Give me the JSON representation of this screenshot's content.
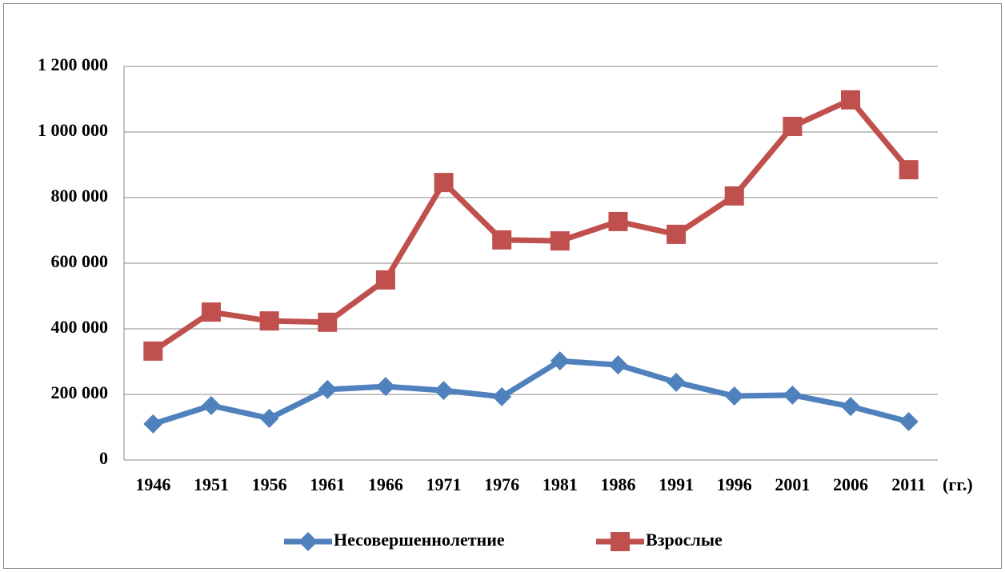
{
  "chart_data": {
    "type": "line",
    "categories": [
      "1946",
      "1951",
      "1956",
      "1961",
      "1966",
      "1971",
      "1976",
      "1981",
      "1986",
      "1991",
      "1996",
      "2001",
      "2006",
      "2011"
    ],
    "x_label": "(гг.)",
    "series": [
      {
        "name": "Несовершеннолетние",
        "color": "#4f81bd",
        "marker": "diamond",
        "values": [
          110000,
          166000,
          127000,
          215000,
          224000,
          212000,
          193000,
          302000,
          290000,
          237000,
          195000,
          198000,
          163000,
          117000
        ]
      },
      {
        "name": "Взрослые",
        "color": "#c0504d",
        "marker": "square",
        "values": [
          332000,
          451000,
          424000,
          420000,
          549000,
          846000,
          671000,
          668000,
          727000,
          688000,
          805000,
          1017000,
          1098000,
          885000
        ]
      }
    ],
    "ylim": [
      0,
      1200000
    ],
    "yticks": [
      0,
      {
        "value": 200000,
        "label": "200 000"
      },
      {
        "value": 400000,
        "label": "400 000"
      },
      {
        "value": 600000,
        "label": "600 000"
      },
      {
        "value": 800000,
        "label": "800 000"
      },
      {
        "value": 1000000,
        "label": "1 000 000"
      },
      {
        "value": 1200000,
        "label": "1 200 000"
      }
    ],
    "grid": true,
    "legend": "bottom"
  }
}
